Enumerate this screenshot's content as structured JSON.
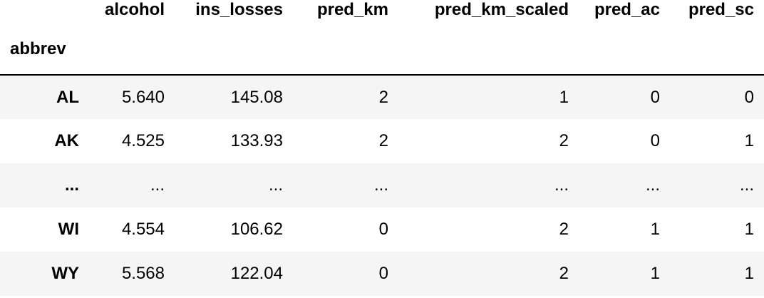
{
  "table": {
    "columns": [
      "alcohol",
      "ins_losses",
      "pred_km",
      "pred_km_scaled",
      "pred_ac",
      "pred_sc"
    ],
    "index_name": "abbrev",
    "rows": [
      {
        "index": "AL",
        "cells": [
          "5.640",
          "145.08",
          "2",
          "1",
          "0",
          "0"
        ]
      },
      {
        "index": "AK",
        "cells": [
          "4.525",
          "133.93",
          "2",
          "2",
          "0",
          "1"
        ]
      },
      {
        "index": "...",
        "cells": [
          "...",
          "...",
          "...",
          "...",
          "...",
          "..."
        ]
      },
      {
        "index": "WI",
        "cells": [
          "4.554",
          "106.62",
          "0",
          "2",
          "1",
          "1"
        ]
      },
      {
        "index": "WY",
        "cells": [
          "5.568",
          "122.04",
          "0",
          "2",
          "1",
          "1"
        ]
      }
    ]
  }
}
